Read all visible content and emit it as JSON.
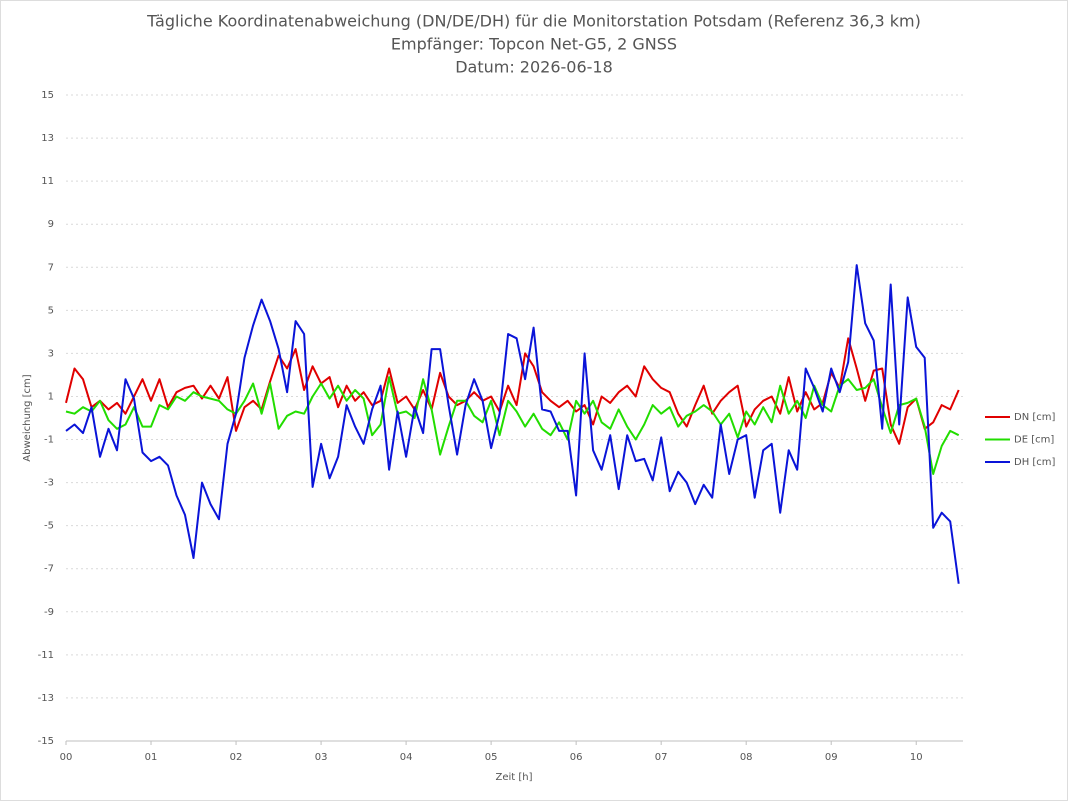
{
  "chart_data": {
    "type": "line",
    "title": "Tägliche Koordinatenabweichung (DN/DE/DH) für die Monitorstation Potsdam (Referenz 36,3 km)",
    "subtitle": [
      "Empfänger: Topcon Net-G5, 2 GNSS",
      "Datum: 2026-06-18"
    ],
    "x_label": "Zeit [h]",
    "y_label": "Abweichung [cm]",
    "xlim": [
      0,
      10.55
    ],
    "ylim": [
      -15,
      15
    ],
    "xticks": [
      {
        "value": 0,
        "label": "00"
      },
      {
        "value": 1,
        "label": "01"
      },
      {
        "value": 2,
        "label": "02"
      },
      {
        "value": 3,
        "label": "03"
      },
      {
        "value": 4,
        "label": "04"
      },
      {
        "value": 5,
        "label": "05"
      },
      {
        "value": 6,
        "label": "06"
      },
      {
        "value": 7,
        "label": "07"
      },
      {
        "value": 8,
        "label": "08"
      },
      {
        "value": 9,
        "label": "09"
      },
      10
    ],
    "yticks": [
      -15,
      -13,
      -11,
      -9,
      -7,
      -5,
      -3,
      -1,
      1,
      3,
      5,
      7,
      9,
      11,
      13,
      15
    ],
    "grid": true,
    "legend": "right",
    "x": [
      0,
      0.1,
      0.2,
      0.3,
      0.4,
      0.5,
      0.6,
      0.7,
      0.8,
      0.9,
      1,
      1.1,
      1.2,
      1.3,
      1.4,
      1.5,
      1.6,
      1.7,
      1.8,
      1.9,
      2,
      2.1,
      2.2,
      2.3,
      2.4,
      2.5,
      2.6,
      2.7,
      2.8,
      2.9,
      3,
      3.1,
      3.2,
      3.3,
      3.4,
      3.5,
      3.6,
      3.7,
      3.8,
      3.9,
      4,
      4.1,
      4.2,
      4.3,
      4.4,
      4.5,
      4.6,
      4.7,
      4.8,
      4.9,
      5,
      5.1,
      5.2,
      5.3,
      5.4,
      5.5,
      5.6,
      5.7,
      5.8,
      5.9,
      6,
      6.1,
      6.2,
      6.3,
      6.4,
      6.5,
      6.6,
      6.7,
      6.8,
      6.9,
      7,
      7.1,
      7.2,
      7.3,
      7.4,
      7.5,
      7.6,
      7.7,
      7.8,
      7.9,
      8,
      8.1,
      8.2,
      8.3,
      8.4,
      8.5,
      8.6,
      8.7,
      8.8,
      8.9,
      9,
      9.1,
      9.2,
      9.3,
      9.4,
      9.5,
      9.6,
      9.7,
      9.8,
      9.9,
      10,
      10.1,
      10.2,
      10.3,
      10.4,
      10.5
    ],
    "series": [
      {
        "name": "DN [cm]",
        "color": "#e00000",
        "values": [
          0.7,
          2.3,
          1.8,
          0.5,
          0.8,
          0.4,
          0.7,
          0.2,
          1.0,
          1.8,
          0.8,
          1.8,
          0.5,
          1.2,
          1.4,
          1.5,
          0.9,
          1.5,
          0.9,
          1.9,
          -0.6,
          0.5,
          0.8,
          0.4,
          1.7,
          2.9,
          2.3,
          3.2,
          1.3,
          2.4,
          1.6,
          1.9,
          0.5,
          1.5,
          0.8,
          1.2,
          0.6,
          0.8,
          2.3,
          0.7,
          1.0,
          0.4,
          1.3,
          0.4,
          2.1,
          1.0,
          0.6,
          0.8,
          1.2,
          0.8,
          1.0,
          0.3,
          1.5,
          0.6,
          3.0,
          2.4,
          1.2,
          0.8,
          0.5,
          0.8,
          0.3,
          0.6,
          -0.3,
          1.0,
          0.7,
          1.2,
          1.5,
          1.0,
          2.4,
          1.8,
          1.4,
          1.2,
          0.2,
          -0.4,
          0.6,
          1.5,
          0.2,
          0.8,
          1.2,
          1.5,
          -0.4,
          0.4,
          0.8,
          1.0,
          0.2,
          1.9,
          0.3,
          1.2,
          0.4,
          0.7,
          2.1,
          1.4,
          3.7,
          2.3,
          0.8,
          2.2,
          2.3,
          -0.3,
          -1.2,
          0.5,
          0.9,
          -0.5,
          -0.2,
          0.6,
          0.4,
          1.3
        ]
      },
      {
        "name": "DE [cm]",
        "color": "#22dd00",
        "values": [
          0.3,
          0.2,
          0.5,
          0.3,
          0.8,
          -0.1,
          -0.5,
          -0.3,
          0.5,
          -0.4,
          -0.4,
          0.6,
          0.4,
          1.0,
          0.8,
          1.2,
          1.0,
          0.9,
          0.8,
          0.4,
          0.2,
          0.8,
          1.6,
          0.2,
          1.6,
          -0.5,
          0.1,
          0.3,
          0.2,
          1.0,
          1.6,
          0.9,
          1.5,
          0.8,
          1.3,
          0.9,
          -0.8,
          -0.3,
          1.9,
          0.2,
          0.3,
          0.0,
          1.8,
          0.4,
          -1.7,
          -0.4,
          0.8,
          0.8,
          0.1,
          -0.2,
          0.8,
          -0.8,
          0.8,
          0.3,
          -0.4,
          0.2,
          -0.5,
          -0.8,
          -0.2,
          -1.0,
          0.8,
          0.2,
          0.8,
          -0.2,
          -0.5,
          0.4,
          -0.4,
          -1.0,
          -0.3,
          0.6,
          0.2,
          0.5,
          -0.4,
          0.1,
          0.3,
          0.6,
          0.3,
          -0.3,
          0.2,
          -0.9,
          0.3,
          -0.3,
          0.5,
          -0.2,
          1.5,
          0.2,
          0.8,
          0.0,
          1.5,
          0.6,
          0.3,
          1.5,
          1.8,
          1.3,
          1.4,
          1.8,
          0.5,
          -0.7,
          0.6,
          0.7,
          0.9,
          -0.4,
          -2.6,
          -1.3,
          -0.6,
          -0.8
        ]
      },
      {
        "name": "DH [cm]",
        "color": "#0a14d8",
        "values": [
          -0.6,
          -0.3,
          -0.7,
          0.5,
          -1.8,
          -0.5,
          -1.5,
          1.8,
          0.9,
          -1.6,
          -2.0,
          -1.8,
          -2.2,
          -3.6,
          -4.5,
          -6.5,
          -3.0,
          -4.0,
          -4.7,
          -1.2,
          0.2,
          2.8,
          4.3,
          5.5,
          4.5,
          3.2,
          1.2,
          4.5,
          3.9,
          -3.2,
          -1.2,
          -2.8,
          -1.8,
          0.6,
          -0.4,
          -1.2,
          0.4,
          1.5,
          -2.4,
          0.3,
          -1.8,
          0.5,
          -0.7,
          3.2,
          3.2,
          0.6,
          -1.7,
          0.6,
          1.8,
          0.8,
          -1.4,
          0.2,
          3.9,
          3.7,
          1.8,
          4.2,
          0.4,
          0.3,
          -0.6,
          -0.6,
          -3.6,
          3.0,
          -1.5,
          -2.4,
          -0.8,
          -3.3,
          -0.8,
          -2.0,
          -1.9,
          -2.9,
          -0.9,
          -3.4,
          -2.5,
          -3.0,
          -4.0,
          -3.1,
          -3.7,
          -0.3,
          -2.6,
          -1.0,
          -0.8,
          -3.7,
          -1.5,
          -1.2,
          -4.4,
          -1.5,
          -2.4,
          2.3,
          1.4,
          0.3,
          2.3,
          1.2,
          2.6,
          7.1,
          4.4,
          3.6,
          -0.5,
          6.2,
          -0.3,
          5.6,
          3.3,
          2.8,
          -5.1,
          -4.4,
          -4.8,
          -7.7
        ]
      }
    ]
  }
}
